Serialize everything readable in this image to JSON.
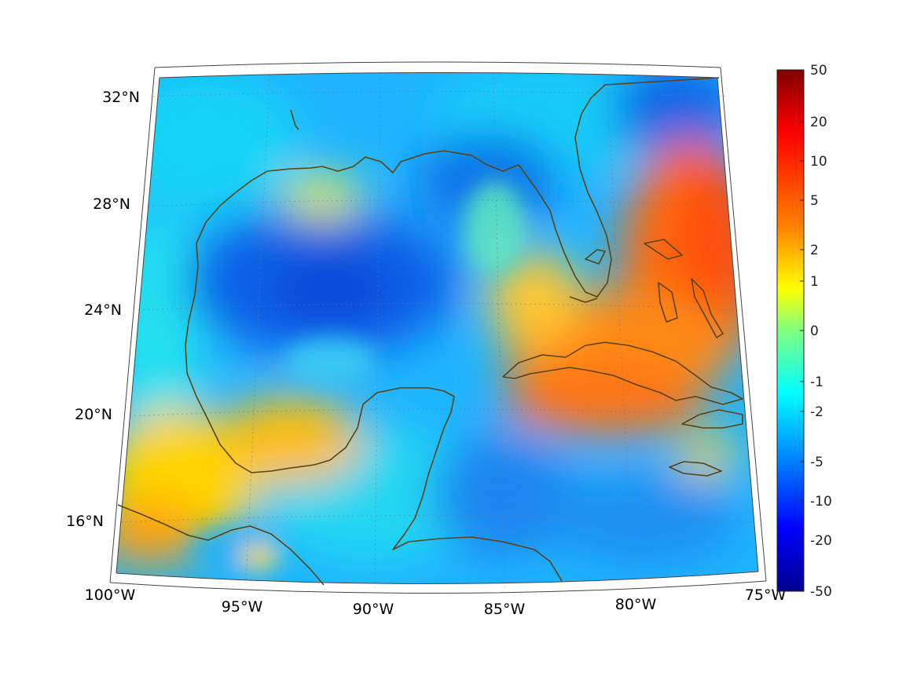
{
  "map": {
    "lat_labels": [
      "32°N",
      "28°N",
      "24°N",
      "20°N",
      "16°N"
    ],
    "lon_labels": [
      "100°W",
      "95°W",
      "90°W",
      "85°W",
      "80°W",
      "75°W"
    ],
    "coastline_color": "#5a4214"
  },
  "colorbar": {
    "ticks": [
      "50",
      "20",
      "10",
      "5",
      "2",
      "1",
      "0",
      "-1",
      "-2",
      "-5",
      "-10",
      "-20",
      "-50"
    ],
    "colors": [
      "#800000",
      "#ff0000",
      "#ff8000",
      "#ffff00",
      "#80ff80",
      "#00ffff",
      "#0080ff",
      "#0000ff",
      "#00008f"
    ]
  }
}
